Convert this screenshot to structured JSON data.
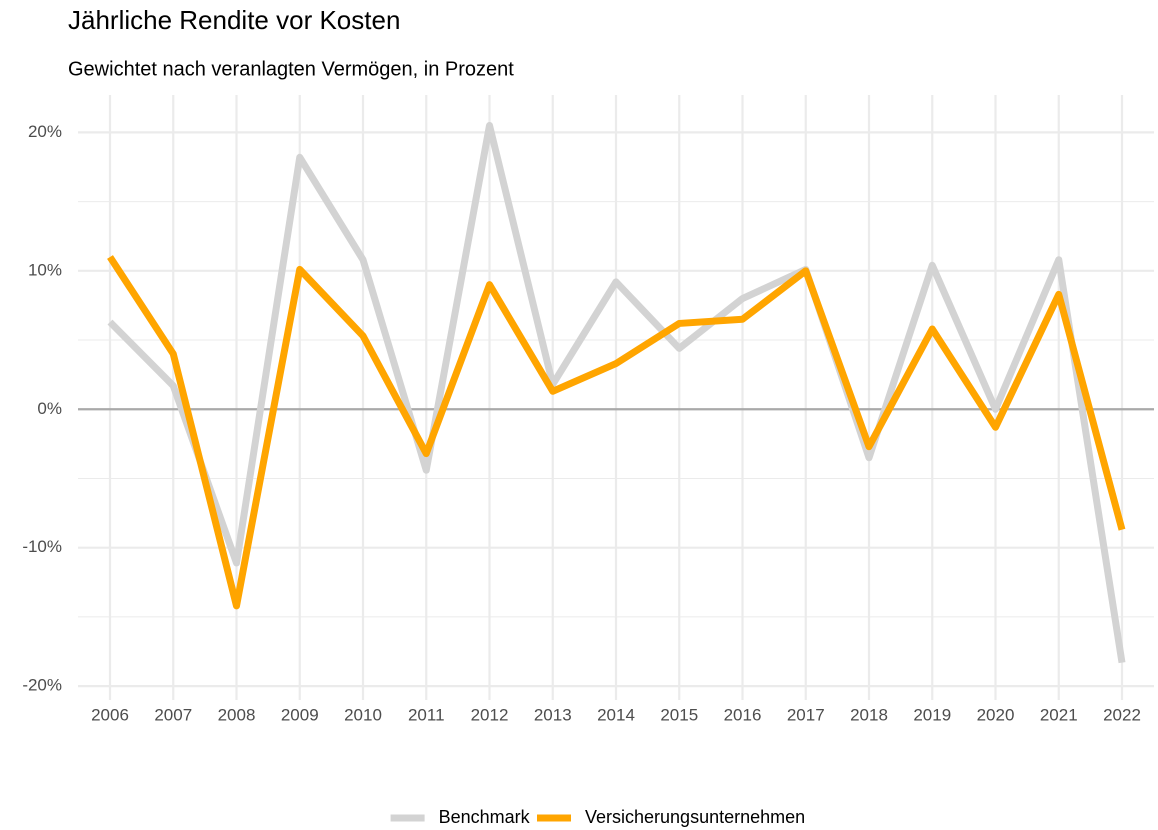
{
  "chart_data": {
    "type": "line",
    "title": "Jährliche Rendite vor Kosten",
    "subtitle": "Gewichtet nach veranlagten Vermögen, in Prozent",
    "categories": [
      "2006",
      "2007",
      "2008",
      "2009",
      "2010",
      "2011",
      "2012",
      "2013",
      "2014",
      "2015",
      "2016",
      "2017",
      "2018",
      "2019",
      "2020",
      "2021",
      "2022"
    ],
    "series": [
      {
        "name": "Benchmark",
        "color": "#d3d3d3",
        "values": [
          6.3,
          1.7,
          -11.1,
          18.2,
          10.8,
          -4.4,
          20.5,
          1.8,
          9.2,
          4.4,
          8.0,
          10.1,
          -3.5,
          10.4,
          0.0,
          10.8,
          -18.3
        ]
      },
      {
        "name": "Versicherungsunternehmen",
        "color": "#ffa500",
        "values": [
          11.0,
          4.0,
          -14.2,
          10.1,
          5.3,
          -3.2,
          9.0,
          1.3,
          3.3,
          6.2,
          6.5,
          10.0,
          -2.7,
          5.8,
          -1.3,
          8.3,
          -8.7
        ]
      }
    ],
    "ylim": [
      -21,
      22.7
    ],
    "yticks": [
      {
        "value": -20,
        "label": "-20%"
      },
      {
        "value": -10,
        "label": "-10%"
      },
      {
        "value": 0,
        "label": "0%"
      },
      {
        "value": 10,
        "label": "10%"
      },
      {
        "value": 20,
        "label": "20%"
      }
    ],
    "grid": true,
    "legend": "bottom"
  }
}
